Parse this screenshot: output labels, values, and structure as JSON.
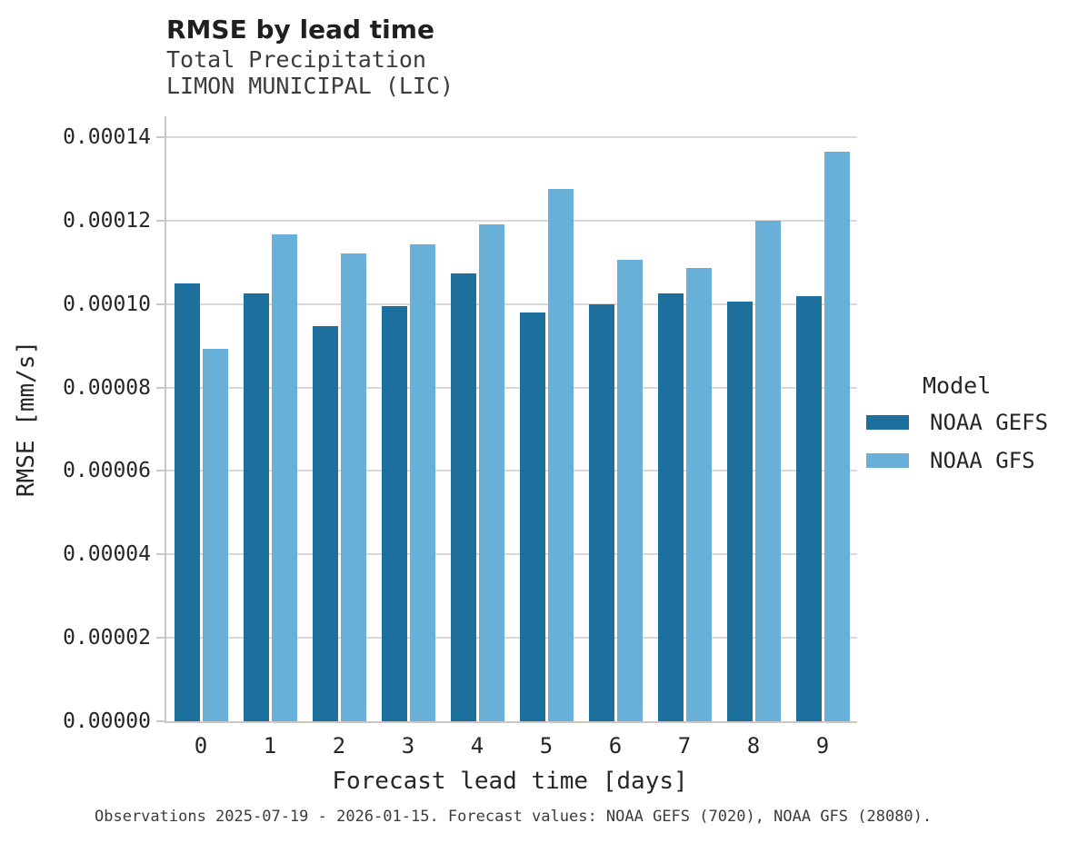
{
  "title": "RMSE by lead time",
  "subtitle_line1": "Total Precipitation",
  "subtitle_line2": "LIMON MUNICIPAL (LIC)",
  "caption": "Observations 2025-07-19 - 2026-01-15. Forecast values: NOAA GEFS (7020), NOAA GFS (28080).",
  "legend": {
    "title": "Model",
    "entries": [
      {
        "label": "NOAA GEFS",
        "color": "#1d6f9e"
      },
      {
        "label": "NOAA GFS",
        "color": "#68b0d8"
      }
    ]
  },
  "colors": {
    "noaa_gefs_bar": "#1d6f9e",
    "noaa_gfs_bar": "#68b0d8",
    "gridline": "#d9d9d9",
    "axis_spine": "#c9c9c9",
    "title_text": "#1f1f1f",
    "body_text": "#262626",
    "muted_text": "#3c3c3c",
    "background": "#ffffff"
  },
  "chart_data": {
    "type": "bar",
    "title": "RMSE by lead time",
    "subtitle": [
      "Total Precipitation",
      "LIMON MUNICIPAL (LIC)"
    ],
    "xlabel": "Forecast lead time [days]",
    "ylabel": "RMSE [mm/s]",
    "categories": [
      "0",
      "1",
      "2",
      "3",
      "4",
      "5",
      "6",
      "7",
      "8",
      "9"
    ],
    "series": [
      {
        "name": "NOAA GEFS",
        "color": "#1d6f9e",
        "values": [
          0.000105,
          0.0001025,
          9.47e-05,
          9.95e-05,
          0.0001074,
          9.8e-05,
          0.0001,
          0.0001025,
          0.0001006,
          0.0001018
        ]
      },
      {
        "name": "NOAA GFS",
        "color": "#68b0d8",
        "values": [
          8.92e-05,
          0.0001168,
          0.0001122,
          0.0001144,
          0.0001192,
          0.0001276,
          0.0001105,
          0.0001086,
          0.0001199,
          0.0001366
        ]
      }
    ],
    "ylim": [
      0,
      0.000145
    ],
    "yticks": [
      0.0,
      2e-05,
      4e-05,
      6e-05,
      8e-05,
      0.0001,
      0.00012,
      0.00014
    ],
    "ytick_labels": [
      "0.00000",
      "0.00002",
      "0.00004",
      "0.00006",
      "0.00008",
      "0.00010",
      "0.00012",
      "0.00014"
    ],
    "grid": true,
    "legend_title": "Model",
    "legend_position": "right",
    "caption": "Observations 2025-07-19 - 2026-01-15. Forecast values: NOAA GEFS (7020), NOAA GFS (28080)."
  }
}
